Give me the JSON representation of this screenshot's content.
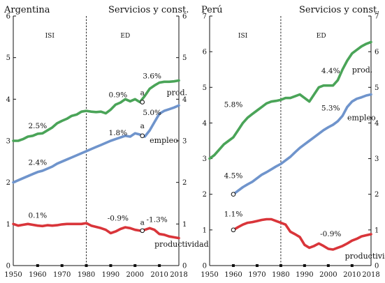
{
  "chart_data": [
    {
      "type": "line",
      "country": "Argentina",
      "sector": "Servicios y const.",
      "xlim": [
        1950,
        2018
      ],
      "ylim": [
        0,
        6
      ],
      "xticks": [
        1950,
        1960,
        1970,
        1980,
        1990,
        2000,
        2010,
        2018
      ],
      "yticks": [
        0,
        1,
        2,
        3,
        4,
        5,
        6
      ],
      "grid": false,
      "divider_year": 1980,
      "periods": [
        {
          "label": "ISI",
          "x": 1965
        },
        {
          "label": "ED",
          "x": 1996
        }
      ],
      "series": [
        {
          "name": "prod.",
          "color": "#4aa458",
          "x": [
            1950,
            1952,
            1954,
            1956,
            1958,
            1960,
            1962,
            1964,
            1966,
            1968,
            1970,
            1972,
            1974,
            1976,
            1978,
            1980,
            1982,
            1984,
            1986,
            1988,
            1990,
            1992,
            1994,
            1996,
            1998,
            2000,
            2002,
            2004,
            2006,
            2008,
            2010,
            2012,
            2014,
            2016,
            2018
          ],
          "values": [
            3.0,
            3.0,
            3.04,
            3.1,
            3.12,
            3.17,
            3.18,
            3.25,
            3.32,
            3.42,
            3.48,
            3.53,
            3.6,
            3.63,
            3.7,
            3.72,
            3.7,
            3.69,
            3.7,
            3.66,
            3.75,
            3.87,
            3.92,
            4.0,
            3.95,
            4.0,
            3.93,
            4.08,
            4.25,
            4.33,
            4.4,
            4.42,
            4.42,
            4.43,
            4.45
          ]
        },
        {
          "name": "empleo",
          "color": "#6f94cc",
          "x": [
            1950,
            1952,
            1954,
            1956,
            1958,
            1960,
            1962,
            1964,
            1966,
            1968,
            1970,
            1972,
            1974,
            1976,
            1978,
            1980,
            1982,
            1984,
            1986,
            1988,
            1990,
            1992,
            1994,
            1996,
            1998,
            2000,
            2002,
            2004,
            2006,
            2008,
            2010,
            2012,
            2014,
            2016,
            2018
          ],
          "values": [
            2.0,
            2.05,
            2.1,
            2.15,
            2.2,
            2.25,
            2.28,
            2.33,
            2.38,
            2.45,
            2.5,
            2.55,
            2.6,
            2.65,
            2.7,
            2.75,
            2.8,
            2.85,
            2.9,
            2.95,
            3.0,
            3.04,
            3.08,
            3.12,
            3.1,
            3.18,
            3.15,
            3.1,
            3.25,
            3.45,
            3.65,
            3.72,
            3.76,
            3.8,
            3.85
          ]
        },
        {
          "name": "productividad",
          "color": "#d9353a",
          "x": [
            1950,
            1952,
            1954,
            1956,
            1958,
            1960,
            1962,
            1964,
            1966,
            1968,
            1970,
            1972,
            1974,
            1976,
            1978,
            1980,
            1982,
            1984,
            1986,
            1988,
            1990,
            1992,
            1994,
            1996,
            1998,
            2000,
            2002,
            2004,
            2006,
            2008,
            2010,
            2012,
            2014,
            2016,
            2018
          ],
          "values": [
            1.0,
            0.96,
            0.98,
            1.0,
            0.98,
            0.96,
            0.95,
            0.97,
            0.96,
            0.97,
            0.99,
            1.0,
            1.0,
            1.0,
            1.0,
            1.02,
            0.96,
            0.93,
            0.9,
            0.86,
            0.78,
            0.82,
            0.88,
            0.92,
            0.9,
            0.86,
            0.84,
            0.86,
            0.9,
            0.86,
            0.76,
            0.74,
            0.7,
            0.68,
            0.66
          ]
        }
      ],
      "annotations": [
        {
          "text": "2.5%",
          "x": 1960,
          "y": 3.3
        },
        {
          "text": "2.4%",
          "x": 1960,
          "y": 2.42
        },
        {
          "text": "0.1%",
          "x": 1960,
          "y": 1.15
        },
        {
          "text": "0.9%",
          "x": 1993,
          "y": 4.05
        },
        {
          "text": "1.8%",
          "x": 1993,
          "y": 3.13
        },
        {
          "text": "-0.9%",
          "x": 1993,
          "y": 1.08
        },
        {
          "text": "3.6%",
          "x": 2007,
          "y": 4.5
        },
        {
          "text": "5.0%",
          "x": 2007,
          "y": 3.62
        },
        {
          "text": "-1.3%",
          "x": 2009,
          "y": 1.05
        },
        {
          "text": "a",
          "x": 2003,
          "y": 4.1
        },
        {
          "text": "a",
          "x": 2003,
          "y": 3.3
        },
        {
          "text": "a",
          "x": 2003,
          "y": 0.98
        }
      ],
      "markers": [
        {
          "x": 2003,
          "y": 3.93
        },
        {
          "x": 2003,
          "y": 3.12
        },
        {
          "x": 2003,
          "y": 0.84
        }
      ],
      "series_labels": [
        {
          "text": "prod.",
          "x": 2013,
          "y": 4.1
        },
        {
          "text": "empleo",
          "x": 2006,
          "y": 2.95
        },
        {
          "text": "productividad",
          "x": 2008,
          "y": 0.45
        }
      ]
    },
    {
      "type": "line",
      "country": "Perú",
      "sector": "Servicios y const.",
      "xlim": [
        1950,
        2018
      ],
      "ylim": [
        0,
        7
      ],
      "xticks": [
        1950,
        1960,
        1970,
        1980,
        1990,
        2000,
        2010,
        2018
      ],
      "yticks": [
        0,
        1,
        2,
        3,
        4,
        5,
        6,
        7
      ],
      "grid": false,
      "divider_year": 1980,
      "periods": [
        {
          "label": "ISI",
          "x": 1964
        },
        {
          "label": "ED",
          "x": 1997
        }
      ],
      "series": [
        {
          "name": "prod.",
          "color": "#4aa458",
          "x": [
            1950,
            1952,
            1954,
            1956,
            1958,
            1960,
            1962,
            1964,
            1966,
            1968,
            1970,
            1972,
            1974,
            1976,
            1978,
            1980,
            1982,
            1984,
            1986,
            1988,
            1990,
            1992,
            1994,
            1996,
            1998,
            2000,
            2002,
            2004,
            2006,
            2008,
            2010,
            2012,
            2014,
            2016,
            2018
          ],
          "values": [
            3.0,
            3.1,
            3.25,
            3.4,
            3.5,
            3.6,
            3.8,
            4.0,
            4.15,
            4.25,
            4.35,
            4.45,
            4.55,
            4.6,
            4.62,
            4.65,
            4.7,
            4.7,
            4.75,
            4.8,
            4.7,
            4.6,
            4.8,
            5.0,
            5.05,
            5.05,
            5.05,
            5.2,
            5.5,
            5.75,
            5.95,
            6.05,
            6.15,
            6.22,
            6.27
          ]
        },
        {
          "name": "empleo",
          "color": "#6f94cc",
          "x": [
            1960,
            1962,
            1964,
            1966,
            1968,
            1970,
            1972,
            1974,
            1976,
            1978,
            1980,
            1982,
            1984,
            1986,
            1988,
            1990,
            1992,
            1994,
            1996,
            1998,
            2000,
            2002,
            2004,
            2006,
            2008,
            2010,
            2012,
            2014,
            2016,
            2018
          ],
          "values": [
            2.0,
            2.1,
            2.2,
            2.28,
            2.35,
            2.45,
            2.55,
            2.62,
            2.7,
            2.78,
            2.85,
            2.95,
            3.05,
            3.18,
            3.3,
            3.4,
            3.5,
            3.6,
            3.7,
            3.8,
            3.88,
            3.95,
            4.05,
            4.2,
            4.45,
            4.6,
            4.68,
            4.72,
            4.77,
            4.8
          ]
        },
        {
          "name": "productividad",
          "color": "#d9353a",
          "x": [
            1960,
            1962,
            1964,
            1966,
            1968,
            1970,
            1972,
            1974,
            1976,
            1978,
            1980,
            1982,
            1984,
            1986,
            1988,
            1990,
            1992,
            1994,
            1996,
            1998,
            2000,
            2002,
            2004,
            2006,
            2008,
            2010,
            2012,
            2014,
            2016,
            2018
          ],
          "values": [
            1.0,
            1.08,
            1.15,
            1.2,
            1.22,
            1.25,
            1.28,
            1.3,
            1.3,
            1.25,
            1.2,
            1.15,
            0.95,
            0.88,
            0.8,
            0.58,
            0.5,
            0.55,
            0.62,
            0.55,
            0.47,
            0.45,
            0.5,
            0.55,
            0.62,
            0.7,
            0.75,
            0.82,
            0.85,
            0.88
          ]
        }
      ],
      "annotations": [
        {
          "text": "5.8%",
          "x": 1960,
          "y": 4.45
        },
        {
          "text": "4.5%",
          "x": 1960,
          "y": 2.45
        },
        {
          "text": "1.1%",
          "x": 1960,
          "y": 1.38
        },
        {
          "text": "4.4%",
          "x": 2001,
          "y": 5.4
        },
        {
          "text": "5.3%",
          "x": 2001,
          "y": 4.35
        },
        {
          "text": "-0.9%",
          "x": 2001,
          "y": 0.82
        }
      ],
      "markers": [
        {
          "x": 1960,
          "y": 2.0
        },
        {
          "x": 1960,
          "y": 1.0
        }
      ],
      "series_labels": [
        {
          "text": "prod.",
          "x": 2010,
          "y": 5.42
        },
        {
          "text": "empleo",
          "x": 2008,
          "y": 4.08
        },
        {
          "text": "productividad",
          "x": 2007,
          "y": 0.2
        }
      ]
    }
  ]
}
